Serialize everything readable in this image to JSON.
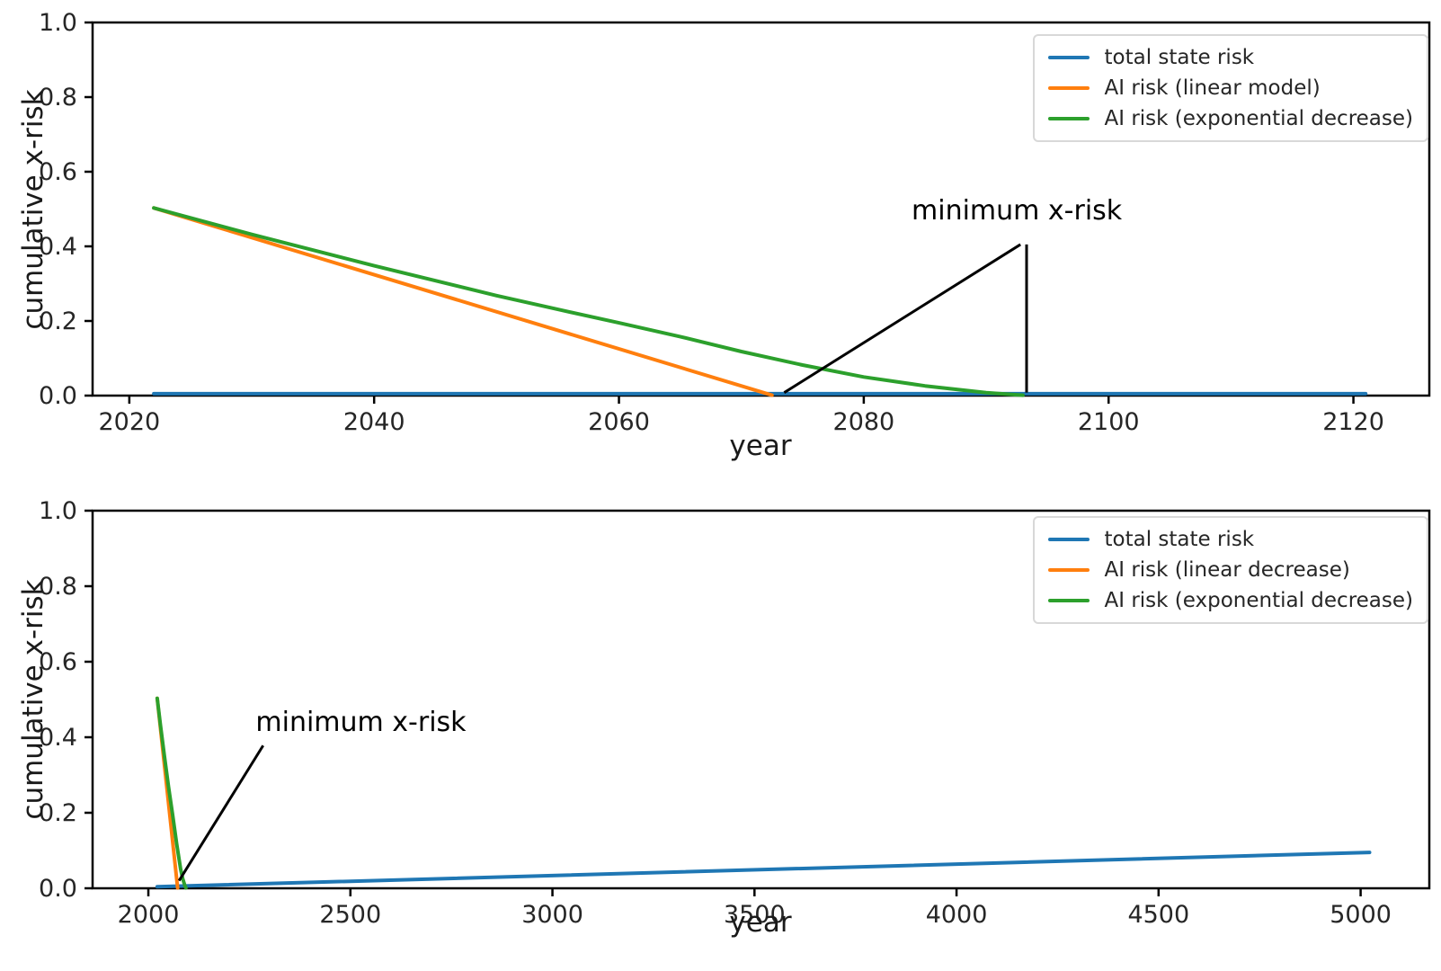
{
  "chart_data": [
    {
      "type": "line",
      "title": "",
      "xlabel": "year",
      "ylabel": "cumulative x-risk",
      "xlim": [
        2017,
        2126.2
      ],
      "ylim": [
        0,
        1
      ],
      "grid": false,
      "legend_position": "upper right",
      "xticks": [
        2020,
        2040,
        2060,
        2080,
        2100,
        2120
      ],
      "xtick_labels": [
        "2020",
        "2040",
        "2060",
        "2080",
        "2100",
        "2120"
      ],
      "yticks": [
        0.0,
        0.2,
        0.4,
        0.6,
        0.8,
        1.0
      ],
      "ytick_labels": [
        "0.0",
        "0.2",
        "0.4",
        "0.6",
        "0.8",
        "1.0"
      ],
      "series": [
        {
          "name": "total state risk",
          "color": "#1f77b4",
          "linewidth": 4,
          "points": [
            [
              2022,
              0.005
            ],
            [
              2121,
              0.005
            ]
          ]
        },
        {
          "name": "AI risk (linear model)",
          "color": "#ff7f0e",
          "linewidth": 4,
          "points": [
            [
              2022,
              0.503
            ],
            [
              2072.5,
              0.001
            ]
          ]
        },
        {
          "name": "AI risk (exponential decrease)",
          "color": "#2ca02c",
          "linewidth": 4,
          "points": [
            [
              2022,
              0.503
            ],
            [
              2030,
              0.432
            ],
            [
              2040,
              0.348
            ],
            [
              2050,
              0.268
            ],
            [
              2055,
              0.231
            ],
            [
              2060,
              0.195
            ],
            [
              2065,
              0.158
            ],
            [
              2070,
              0.118
            ],
            [
              2075,
              0.082
            ],
            [
              2080,
              0.05
            ],
            [
              2085,
              0.026
            ],
            [
              2090,
              0.008
            ],
            [
              2093,
              0.001
            ]
          ]
        }
      ],
      "annotation": {
        "text": "minimum x-risk",
        "color": "#000000",
        "linewidth": 3,
        "text_anchor": [
          2092.5,
          0.452
        ],
        "arrows": [
          {
            "from": [
              2092.8,
              0.405
            ],
            "to": [
              2073.5,
              0.008
            ]
          },
          {
            "from": [
              2093.3,
              0.405
            ],
            "to": [
              2093.3,
              0.008
            ]
          }
        ]
      }
    },
    {
      "type": "line",
      "title": "",
      "xlabel": "year",
      "ylabel": "cumulative x-risk",
      "xlim": [
        1862,
        5170
      ],
      "ylim": [
        0,
        1
      ],
      "grid": false,
      "legend_position": "upper right",
      "xticks": [
        2000,
        2500,
        3000,
        3500,
        4000,
        4500,
        5000
      ],
      "xtick_labels": [
        "2000",
        "2500",
        "3000",
        "3500",
        "4000",
        "4500",
        "5000"
      ],
      "yticks": [
        0.0,
        0.2,
        0.4,
        0.6,
        0.8,
        1.0
      ],
      "ytick_labels": [
        "0.0",
        "0.2",
        "0.4",
        "0.6",
        "0.8",
        "1.0"
      ],
      "series": [
        {
          "name": "total state risk",
          "color": "#1f77b4",
          "linewidth": 4,
          "points": [
            [
              2022,
              0.004
            ],
            [
              5022,
              0.095
            ]
          ]
        },
        {
          "name": "AI risk (linear decrease)",
          "color": "#ff7f0e",
          "linewidth": 4,
          "points": [
            [
              2022,
              0.503
            ],
            [
              2072.5,
              0.001
            ]
          ]
        },
        {
          "name": "AI risk (exponential decrease)",
          "color": "#2ca02c",
          "linewidth": 4,
          "points": [
            [
              2022,
              0.503
            ],
            [
              2030,
              0.432
            ],
            [
              2040,
              0.348
            ],
            [
              2050,
              0.268
            ],
            [
              2060,
              0.195
            ],
            [
              2070,
              0.118
            ],
            [
              2080,
              0.05
            ],
            [
              2085,
              0.026
            ],
            [
              2090,
              0.008
            ],
            [
              2093,
              0.001
            ]
          ]
        }
      ],
      "annotation": {
        "text": "minimum x-risk",
        "color": "#000000",
        "linewidth": 3,
        "text_anchor": [
          2526,
          0.398
        ],
        "arrows": [
          {
            "from": [
              2284,
              0.378
            ],
            "to": [
              2076,
              0.02
            ]
          }
        ]
      }
    }
  ],
  "style": {
    "spine_color": "#000000",
    "tick_label_color": "#262626",
    "background": "#ffffff"
  }
}
